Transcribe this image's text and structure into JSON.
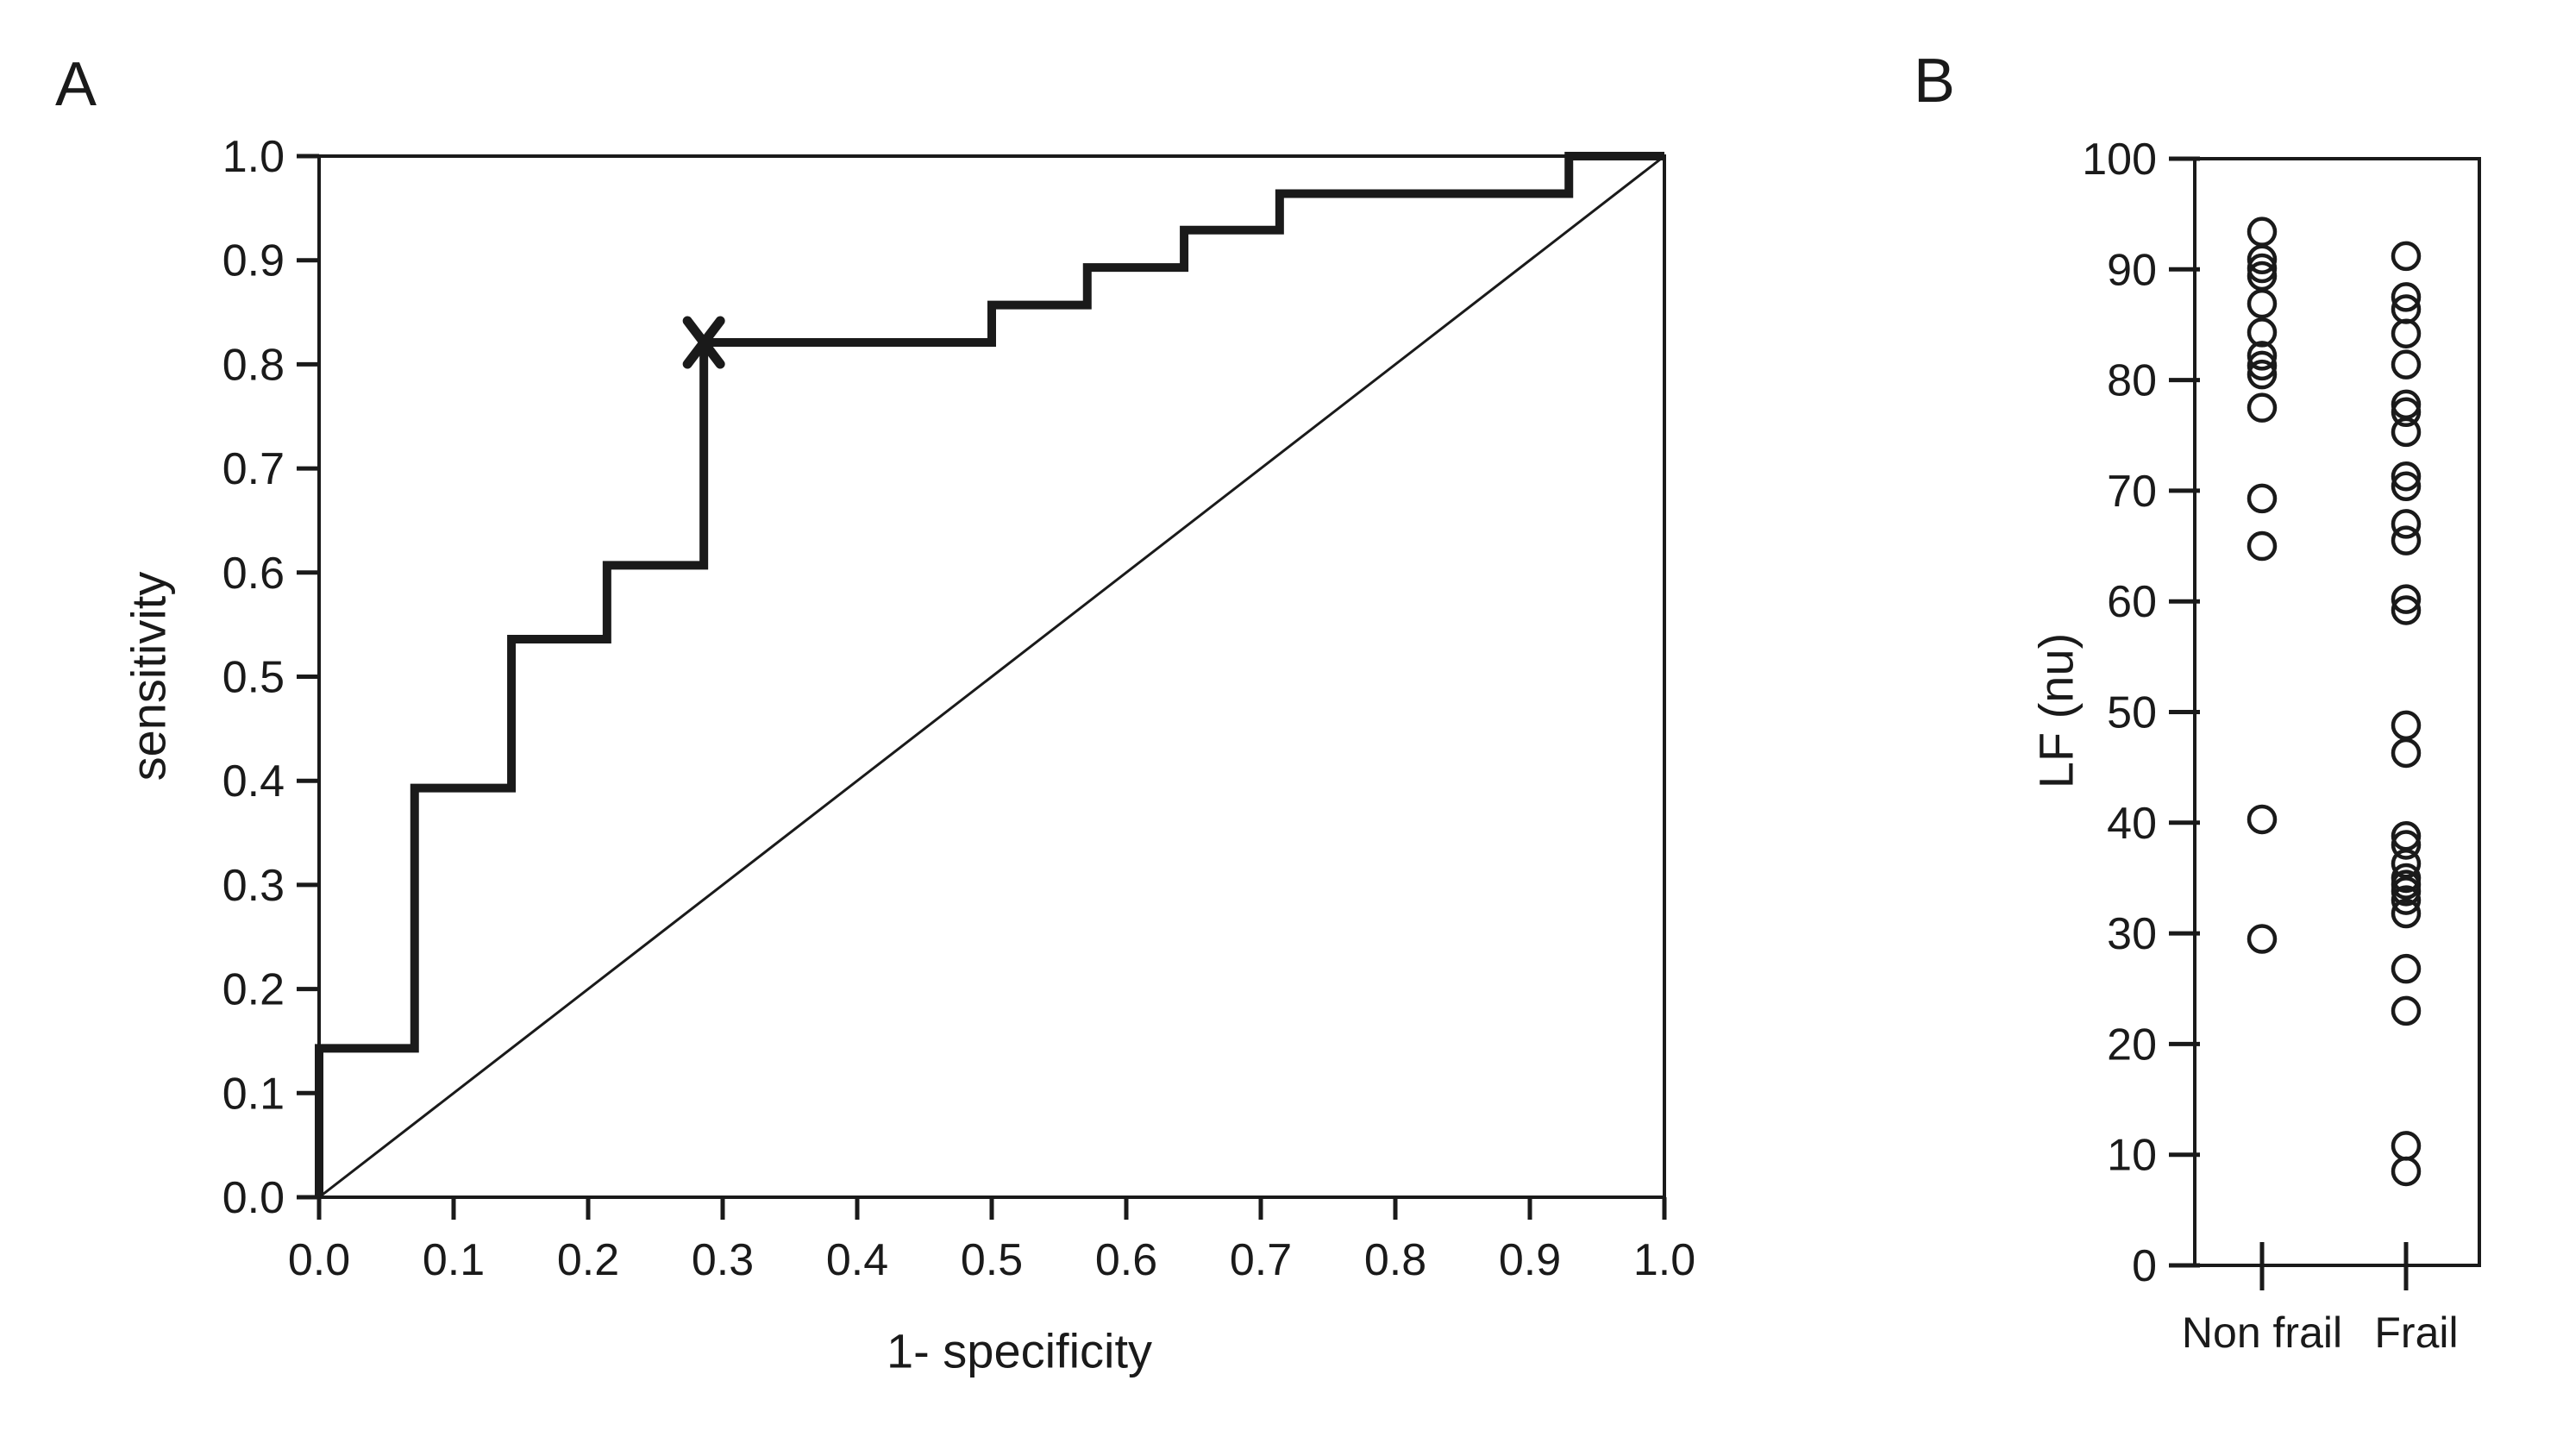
{
  "figure": {
    "background_color": "#ffffff",
    "ink_color": "#1a1a1a"
  },
  "panels": {
    "a": {
      "letter": "A",
      "x_axis_title": "1- specificity",
      "y_axis_title": "sensitivity"
    },
    "b": {
      "letter": "B",
      "y_axis_title": "LF (nu)"
    }
  },
  "chart_data": [
    {
      "id": "roc",
      "type": "line",
      "panel": "A",
      "title": "",
      "xlabel": "1- specificity",
      "ylabel": "sensitivity",
      "xlim": [
        0,
        1
      ],
      "ylim": [
        0,
        1
      ],
      "grid": false,
      "legend": "none",
      "x_ticks": [
        0.0,
        0.1,
        0.2,
        0.3,
        0.4,
        0.5,
        0.6,
        0.7,
        0.8,
        0.9,
        1.0
      ],
      "x_tick_labels": [
        "0.0",
        "0.1",
        "0.2",
        "0.3",
        "0.4",
        "0.5",
        "0.6",
        "0.7",
        "0.8",
        "0.9",
        "1.0"
      ],
      "y_ticks": [
        0.0,
        0.1,
        0.2,
        0.3,
        0.4,
        0.5,
        0.6,
        0.7,
        0.8,
        0.9,
        1.0
      ],
      "y_tick_labels": [
        "0.0",
        "0.1",
        "0.2",
        "0.3",
        "0.4",
        "0.5",
        "0.6",
        "0.7",
        "0.8",
        "0.9",
        "1.0"
      ],
      "series": [
        {
          "name": "ROC curve",
          "style": "thick-step",
          "points": [
            [
              0.0,
              0.0
            ],
            [
              0.0,
              0.143
            ],
            [
              0.071,
              0.143
            ],
            [
              0.071,
              0.393
            ],
            [
              0.143,
              0.393
            ],
            [
              0.143,
              0.536
            ],
            [
              0.214,
              0.536
            ],
            [
              0.214,
              0.607
            ],
            [
              0.286,
              0.607
            ],
            [
              0.286,
              0.821
            ],
            [
              0.5,
              0.821
            ],
            [
              0.5,
              0.857
            ],
            [
              0.571,
              0.857
            ],
            [
              0.571,
              0.893
            ],
            [
              0.643,
              0.893
            ],
            [
              0.643,
              0.929
            ],
            [
              0.714,
              0.929
            ],
            [
              0.714,
              0.964
            ],
            [
              0.929,
              0.964
            ],
            [
              0.929,
              1.0
            ],
            [
              1.0,
              1.0
            ]
          ]
        },
        {
          "name": "chance diagonal",
          "style": "thin-line",
          "points": [
            [
              0.0,
              0.0
            ],
            [
              1.0,
              1.0
            ]
          ]
        }
      ],
      "annotations": [
        {
          "type": "cutoff-marker",
          "symbol": "x",
          "x": 0.286,
          "y": 0.821
        }
      ]
    },
    {
      "id": "lf_dotplot",
      "type": "scatter",
      "panel": "B",
      "title": "",
      "xlabel": "",
      "ylabel": "LF (nu)",
      "ylim": [
        0,
        100
      ],
      "grid": false,
      "y_ticks": [
        0,
        10,
        20,
        30,
        40,
        50,
        60,
        70,
        80,
        90,
        100
      ],
      "y_tick_labels": [
        "0",
        "10",
        "20",
        "30",
        "40",
        "50",
        "60",
        "70",
        "80",
        "90",
        "100"
      ],
      "categories": [
        "Non frail",
        "Frail"
      ],
      "marker": {
        "shape": "open-circle"
      },
      "series": [
        {
          "name": "Non frail",
          "values": [
            93.4,
            90.9,
            90.1,
            89.4,
            86.9,
            84.3,
            82.2,
            81.3,
            80.5,
            77.5,
            69.3,
            65.0,
            40.3,
            29.5
          ]
        },
        {
          "name": "Frail",
          "values": [
            91.2,
            87.5,
            86.4,
            84.2,
            81.4,
            77.8,
            77.1,
            75.3,
            71.3,
            70.4,
            67.0,
            65.5,
            60.2,
            59.2,
            48.8,
            46.3,
            38.8,
            38.0,
            36.3,
            35.0,
            34.4,
            33.8,
            33.0,
            31.8,
            26.8,
            23.0,
            10.8,
            8.5
          ]
        }
      ]
    }
  ]
}
